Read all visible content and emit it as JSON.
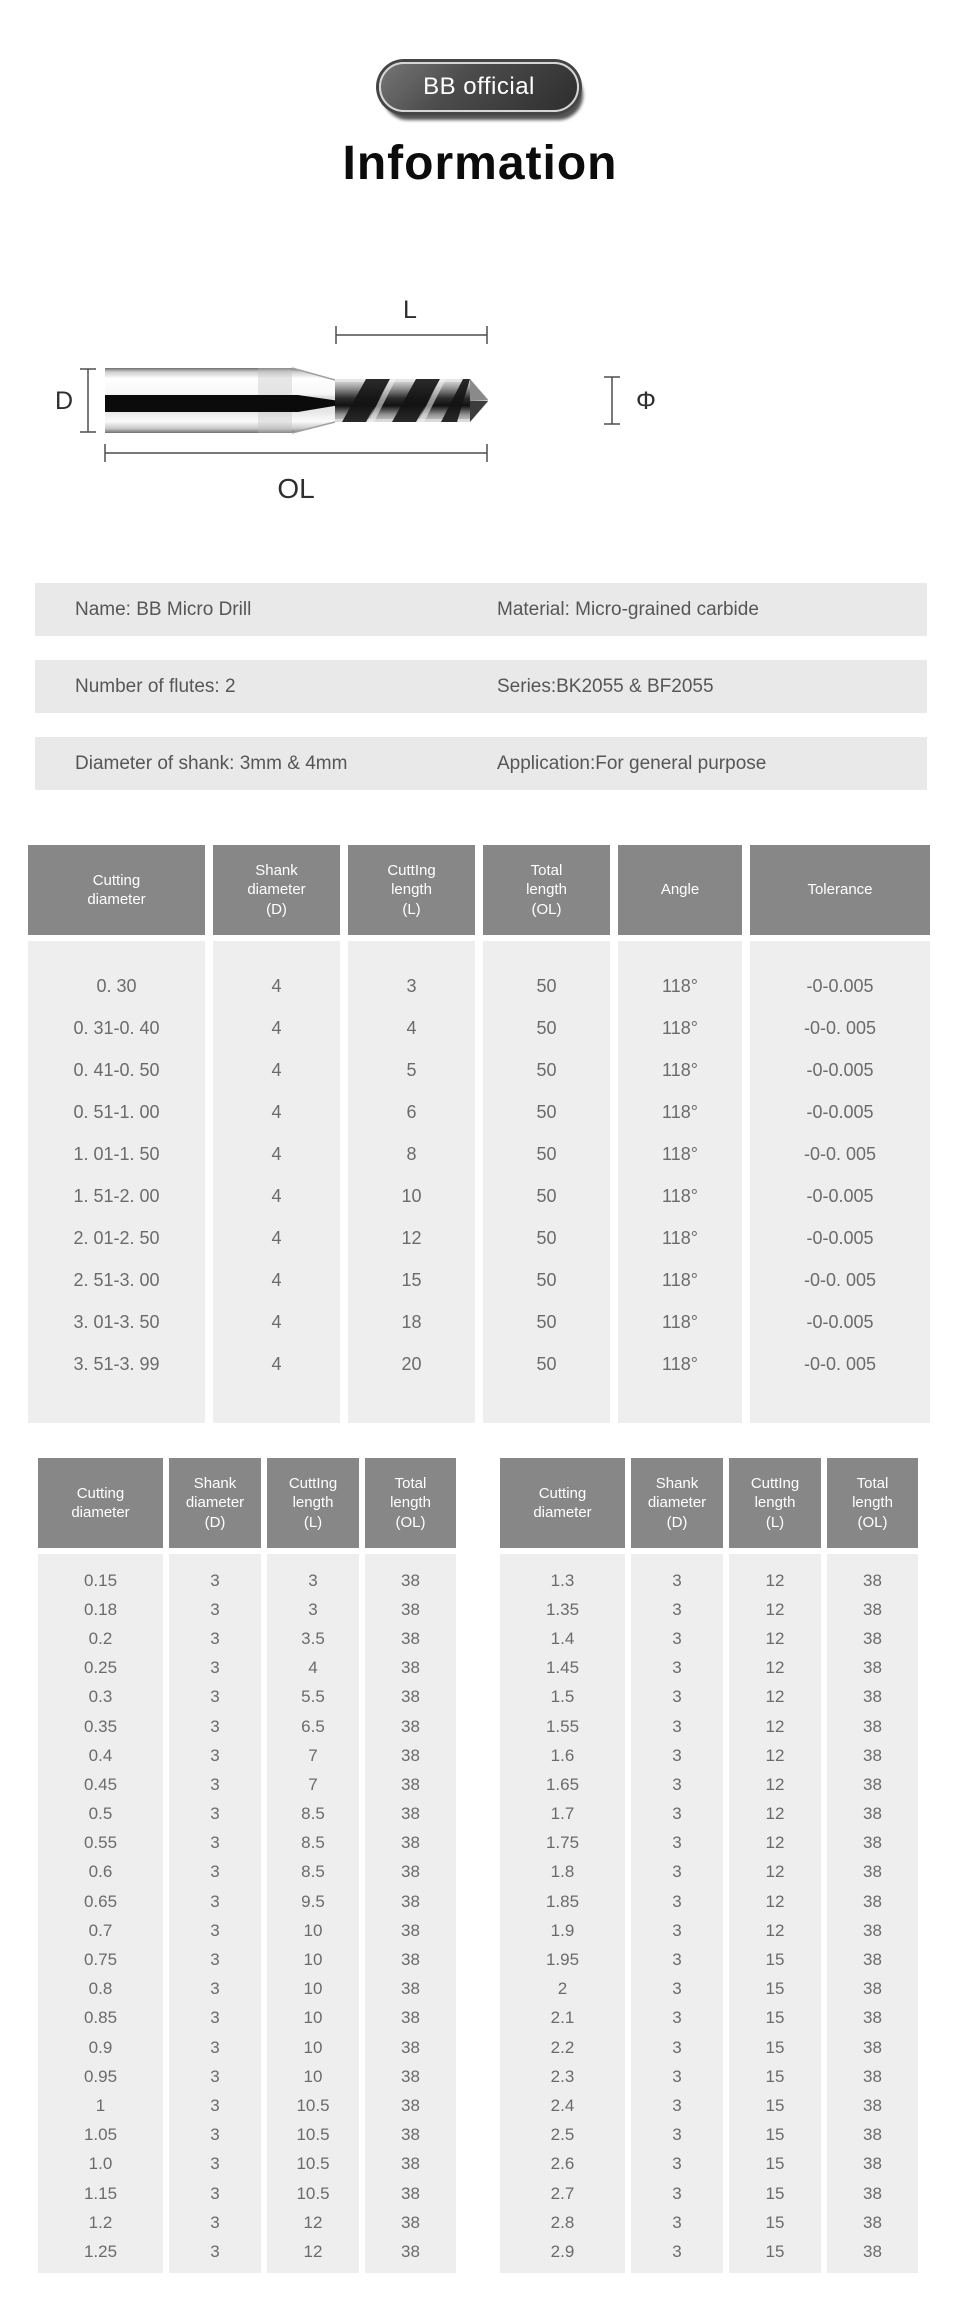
{
  "badge": {
    "label": "BB official"
  },
  "title": "Information",
  "diagram": {
    "labels": {
      "d": "D",
      "phi": "Φ",
      "l": "L",
      "ol": "OL"
    }
  },
  "info_rows": [
    {
      "left": "Name: BB Micro Drill",
      "right": "Material: Micro-grained carbide"
    },
    {
      "left": "Number of flutes: 2",
      "right": "Series:BK2055 & BF2055"
    },
    {
      "left": "Diameter of shank: 3mm & 4mm",
      "right": "Application:For general purpose"
    }
  ],
  "main_table": {
    "headers": [
      "Cutting\ndiameter",
      "Shank\ndiameter\n(D)",
      "CuttIng\nlength\n(L)",
      "Total\nlength\n(OL)",
      "Angle",
      "Tolerance"
    ],
    "rows": [
      [
        "0. 30",
        "4",
        "3",
        "50",
        "118°",
        "-0-0.005"
      ],
      [
        "0. 31-0. 40",
        "4",
        "4",
        "50",
        "118°",
        "-0-0. 005"
      ],
      [
        "0. 41-0. 50",
        "4",
        "5",
        "50",
        "118°",
        "-0-0.005"
      ],
      [
        "0. 51-1. 00",
        "4",
        "6",
        "50",
        "118°",
        "-0-0.005"
      ],
      [
        "1. 01-1. 50",
        "4",
        "8",
        "50",
        "118°",
        "-0-0. 005"
      ],
      [
        "1. 51-2. 00",
        "4",
        "10",
        "50",
        "118°",
        "-0-0.005"
      ],
      [
        "2. 01-2. 50",
        "4",
        "12",
        "50",
        "118°",
        "-0-0.005"
      ],
      [
        "2. 51-3. 00",
        "4",
        "15",
        "50",
        "118°",
        "-0-0. 005"
      ],
      [
        "3. 01-3. 50",
        "4",
        "18",
        "50",
        "118°",
        "-0-0.005"
      ],
      [
        "3. 51-3. 99",
        "4",
        "20",
        "50",
        "118°",
        "-0-0. 005"
      ]
    ]
  },
  "small_tables": [
    {
      "headers": [
        "Cutting\ndiameter",
        "Shank\ndiameter\n(D)",
        "CuttIng\nlength\n(L)",
        "Total\nlength\n(OL)"
      ],
      "rows": [
        [
          "0.15",
          "3",
          "3",
          "38"
        ],
        [
          "0.18",
          "3",
          "3",
          "38"
        ],
        [
          "0.2",
          "3",
          "3.5",
          "38"
        ],
        [
          "0.25",
          "3",
          "4",
          "38"
        ],
        [
          "0.3",
          "3",
          "5.5",
          "38"
        ],
        [
          "0.35",
          "3",
          "6.5",
          "38"
        ],
        [
          "0.4",
          "3",
          "7",
          "38"
        ],
        [
          "0.45",
          "3",
          "7",
          "38"
        ],
        [
          "0.5",
          "3",
          "8.5",
          "38"
        ],
        [
          "0.55",
          "3",
          "8.5",
          "38"
        ],
        [
          "0.6",
          "3",
          "8.5",
          "38"
        ],
        [
          "0.65",
          "3",
          "9.5",
          "38"
        ],
        [
          "0.7",
          "3",
          "10",
          "38"
        ],
        [
          "0.75",
          "3",
          "10",
          "38"
        ],
        [
          "0.8",
          "3",
          "10",
          "38"
        ],
        [
          "0.85",
          "3",
          "10",
          "38"
        ],
        [
          "0.9",
          "3",
          "10",
          "38"
        ],
        [
          "0.95",
          "3",
          "10",
          "38"
        ],
        [
          "1",
          "3",
          "10.5",
          "38"
        ],
        [
          "1.05",
          "3",
          "10.5",
          "38"
        ],
        [
          "1.0",
          "3",
          "10.5",
          "38"
        ],
        [
          "1.15",
          "3",
          "10.5",
          "38"
        ],
        [
          "1.2",
          "3",
          "12",
          "38"
        ],
        [
          "1.25",
          "3",
          "12",
          "38"
        ]
      ]
    },
    {
      "headers": [
        "Cutting\ndiameter",
        "Shank\ndiameter\n(D)",
        "CuttIng\nlength\n(L)",
        "Total\nlength\n(OL)"
      ],
      "rows": [
        [
          "1.3",
          "3",
          "12",
          "38"
        ],
        [
          "1.35",
          "3",
          "12",
          "38"
        ],
        [
          "1.4",
          "3",
          "12",
          "38"
        ],
        [
          "1.45",
          "3",
          "12",
          "38"
        ],
        [
          "1.5",
          "3",
          "12",
          "38"
        ],
        [
          "1.55",
          "3",
          "12",
          "38"
        ],
        [
          "1.6",
          "3",
          "12",
          "38"
        ],
        [
          "1.65",
          "3",
          "12",
          "38"
        ],
        [
          "1.7",
          "3",
          "12",
          "38"
        ],
        [
          "1.75",
          "3",
          "12",
          "38"
        ],
        [
          "1.8",
          "3",
          "12",
          "38"
        ],
        [
          "1.85",
          "3",
          "12",
          "38"
        ],
        [
          "1.9",
          "3",
          "12",
          "38"
        ],
        [
          "1.95",
          "3",
          "15",
          "38"
        ],
        [
          "2",
          "3",
          "15",
          "38"
        ],
        [
          "2.1",
          "3",
          "15",
          "38"
        ],
        [
          "2.2",
          "3",
          "15",
          "38"
        ],
        [
          "2.3",
          "3",
          "15",
          "38"
        ],
        [
          "2.4",
          "3",
          "15",
          "38"
        ],
        [
          "2.5",
          "3",
          "15",
          "38"
        ],
        [
          "2.6",
          "3",
          "15",
          "38"
        ],
        [
          "2.7",
          "3",
          "15",
          "38"
        ],
        [
          "2.8",
          "3",
          "15",
          "38"
        ],
        [
          "2.9",
          "3",
          "15",
          "38"
        ]
      ]
    }
  ]
}
